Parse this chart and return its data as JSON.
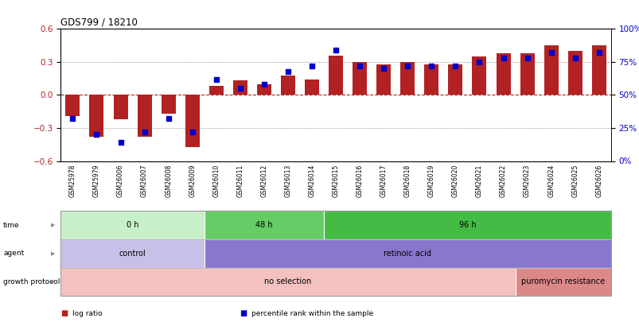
{
  "title": "GDS799 / 18210",
  "samples": [
    "GSM25978",
    "GSM25979",
    "GSM26006",
    "GSM26007",
    "GSM26008",
    "GSM26009",
    "GSM26010",
    "GSM26011",
    "GSM26012",
    "GSM26013",
    "GSM26014",
    "GSM26015",
    "GSM26016",
    "GSM26017",
    "GSM26018",
    "GSM26019",
    "GSM26020",
    "GSM26021",
    "GSM26022",
    "GSM26023",
    "GSM26024",
    "GSM26025",
    "GSM26026"
  ],
  "log_ratio": [
    -0.19,
    -0.38,
    -0.22,
    -0.38,
    -0.17,
    -0.47,
    0.08,
    0.13,
    0.1,
    0.18,
    0.14,
    0.36,
    0.3,
    0.28,
    0.3,
    0.28,
    0.28,
    0.35,
    0.38,
    0.38,
    0.45,
    0.4,
    0.45
  ],
  "percentile": [
    32,
    20,
    14,
    22,
    32,
    22,
    62,
    55,
    58,
    68,
    72,
    84,
    72,
    70,
    72,
    72,
    72,
    75,
    78,
    78,
    82,
    78,
    82
  ],
  "ylim_left": [
    -0.6,
    0.6
  ],
  "ylim_right": [
    0,
    100
  ],
  "yticks_left": [
    -0.6,
    -0.3,
    0,
    0.3,
    0.6
  ],
  "yticks_right": [
    0,
    25,
    50,
    75,
    100
  ],
  "bar_color": "#b22222",
  "scatter_color": "#0000cd",
  "bg_color": "#ffffff",
  "time_groups": [
    {
      "label": "0 h",
      "start": 0,
      "end": 5,
      "color": "#c8f0c8"
    },
    {
      "label": "48 h",
      "start": 6,
      "end": 10,
      "color": "#66cc66"
    },
    {
      "label": "96 h",
      "start": 11,
      "end": 22,
      "color": "#44bb44"
    }
  ],
  "agent_groups": [
    {
      "label": "control",
      "start": 0,
      "end": 5,
      "color": "#c8c0e8"
    },
    {
      "label": "retinoic acid",
      "start": 6,
      "end": 22,
      "color": "#8877cc"
    }
  ],
  "growth_groups": [
    {
      "label": "no selection",
      "start": 0,
      "end": 18,
      "color": "#f4c0c0"
    },
    {
      "label": "puromycin resistance",
      "start": 19,
      "end": 22,
      "color": "#dd8888"
    }
  ],
  "row_labels": [
    "time",
    "agent",
    "growth protocol"
  ],
  "legend_items": [
    {
      "label": "log ratio",
      "color": "#b22222"
    },
    {
      "label": "percentile rank within the sample",
      "color": "#0000cd"
    }
  ]
}
